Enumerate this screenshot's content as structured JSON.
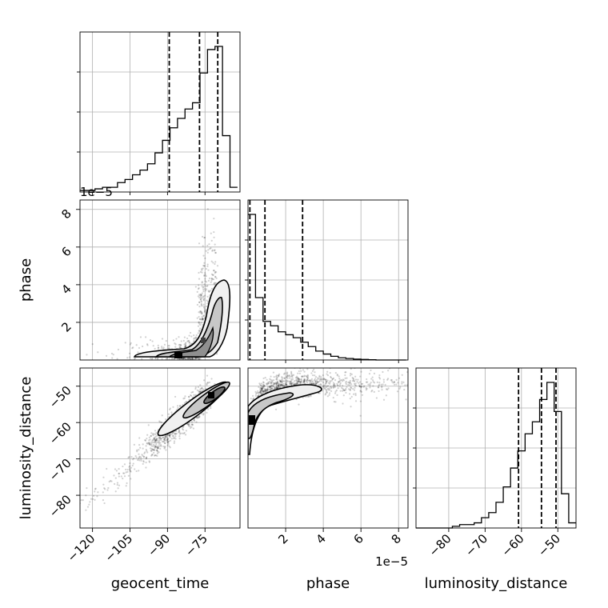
{
  "chart_data": {
    "type": "corner",
    "parameters": [
      "geocent_time",
      "phase",
      "luminosity_distance"
    ],
    "labels": {
      "x": [
        "geocent_time",
        "phase",
        "luminosity_distance"
      ],
      "y": [
        "phase",
        "luminosity_distance"
      ]
    },
    "ranges": {
      "geocent_time": [
        -125,
        -61
      ],
      "phase": [
        0,
        8.5
      ],
      "luminosity_distance": [
        -89,
        -45
      ]
    },
    "phase_offset_text": "1e−5",
    "ticks": {
      "geocent_time": {
        "values": [
          -120,
          -105,
          -90,
          -75
        ],
        "labels": [
          "−120",
          "−105",
          "−90",
          "−75"
        ]
      },
      "phase": {
        "values": [
          2,
          4,
          6,
          8
        ],
        "labels": [
          "2",
          "4",
          "6",
          "8"
        ]
      },
      "luminosity_distance": {
        "values": [
          -80,
          -70,
          -60,
          -50
        ],
        "labels": [
          "−80",
          "−70",
          "−60",
          "−50"
        ]
      }
    },
    "grid": true,
    "marginals": {
      "geocent_time": {
        "bin_edges": [
          -125,
          -122,
          -119,
          -116,
          -113,
          -110,
          -107,
          -104,
          -101,
          -98,
          -95,
          -92,
          -89,
          -86,
          -83,
          -80,
          -77,
          -74,
          -71,
          -68,
          -65,
          -62
        ],
        "counts": [
          0.01,
          0.01,
          0.02,
          0.03,
          0.03,
          0.06,
          0.08,
          0.11,
          0.14,
          0.18,
          0.25,
          0.33,
          0.41,
          0.47,
          0.53,
          0.57,
          0.76,
          0.91,
          0.93,
          0.36,
          0.03
        ],
        "quantiles": [
          -89.3,
          -77.2,
          -69.9
        ]
      },
      "phase": {
        "bin_edges": [
          0.0,
          0.4,
          0.8,
          1.2,
          1.6,
          2.0,
          2.4,
          2.8,
          3.2,
          3.6,
          4.0,
          4.4,
          4.8,
          5.2,
          5.6,
          6.0,
          6.4,
          6.8,
          7.2,
          7.6,
          8.0,
          8.4
        ],
        "counts": [
          0.98,
          0.42,
          0.26,
          0.23,
          0.19,
          0.17,
          0.15,
          0.12,
          0.09,
          0.06,
          0.04,
          0.025,
          0.015,
          0.01,
          0.006,
          0.004,
          0.002,
          0.0,
          0.0,
          0.0,
          0.0
        ],
        "quantiles": [
          0.1,
          0.9,
          2.9
        ]
      },
      "luminosity_distance": {
        "bin_edges": [
          -89,
          -87,
          -85,
          -83,
          -81,
          -79,
          -77,
          -75,
          -73,
          -71,
          -69,
          -67,
          -65,
          -63,
          -61,
          -59,
          -57,
          -55,
          -53,
          -51,
          -49,
          -47,
          -45
        ],
        "counts": [
          0.0,
          0.0,
          0.0,
          0.0,
          0.0,
          0.01,
          0.02,
          0.02,
          0.03,
          0.06,
          0.09,
          0.15,
          0.24,
          0.35,
          0.45,
          0.55,
          0.62,
          0.75,
          0.85,
          0.68,
          0.2,
          0.03
        ],
        "quantiles": [
          -60.8,
          -54.5,
          -50.5
        ]
      }
    }
  }
}
